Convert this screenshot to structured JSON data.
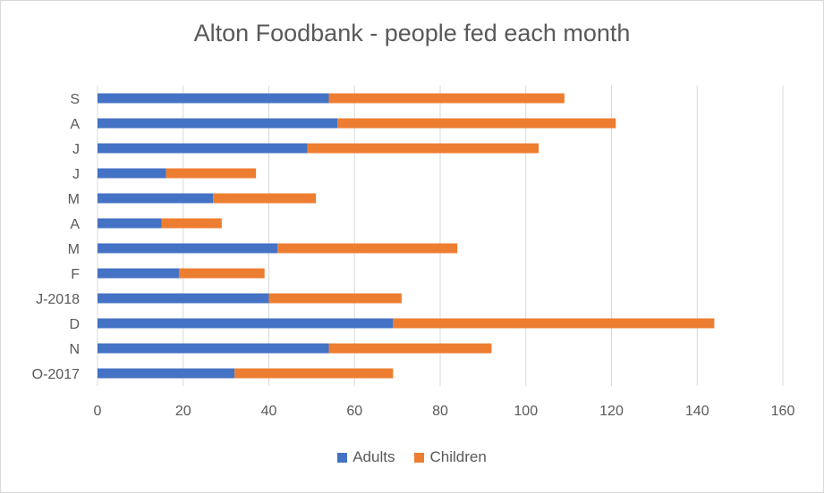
{
  "chart_data": {
    "type": "bar",
    "orientation": "horizontal",
    "stacked": true,
    "title": "Alton Foodbank - people fed each month",
    "categories": [
      "O-2017",
      "N",
      "D",
      "J-2018",
      "F",
      "M",
      "A",
      "M",
      "J",
      "J",
      "A",
      "S"
    ],
    "series": [
      {
        "name": "Adults",
        "color": "#4472C4",
        "values": [
          32,
          54,
          69,
          40,
          19,
          42,
          15,
          27,
          16,
          49,
          56,
          54
        ]
      },
      {
        "name": "Children",
        "color": "#ED7D31",
        "values": [
          37,
          38,
          75,
          31,
          20,
          42,
          14,
          24,
          21,
          54,
          65,
          55
        ]
      }
    ],
    "xlim": [
      0,
      160
    ],
    "xticks": [
      0,
      20,
      40,
      60,
      80,
      100,
      120,
      140,
      160
    ],
    "grid": true,
    "legend_position": "bottom"
  }
}
